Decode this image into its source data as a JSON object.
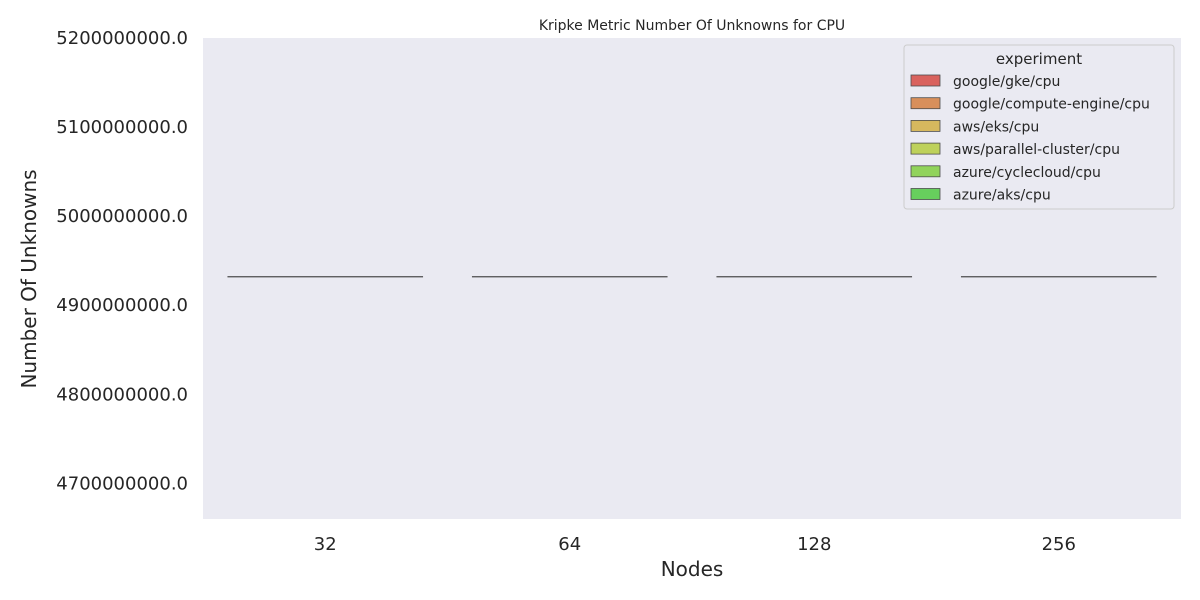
{
  "chart_data": {
    "type": "box",
    "title": "Kripke Metric Number Of Unknowns for CPU",
    "xlabel": "Nodes",
    "ylabel": "Number Of Unknowns",
    "categories": [
      "32",
      "64",
      "128",
      "256"
    ],
    "ylim": [
      4660000000,
      5200000000
    ],
    "yticks": [
      4700000000,
      4800000000,
      4900000000,
      5000000000,
      5100000000,
      5200000000
    ],
    "ytick_labels": [
      "4700000000.0",
      "4800000000.0",
      "4900000000.0",
      "5000000000.0",
      "5100000000.0",
      "5200000000.0"
    ],
    "grid": false,
    "background": "#eaeaf2",
    "legend": {
      "title": "experiment",
      "placement": "top-right",
      "entries": [
        {
          "label": "google/gke/cpu",
          "color": "#d9625e"
        },
        {
          "label": "google/compute-engine/cpu",
          "color": "#d88f5b"
        },
        {
          "label": "aws/eks/cpu",
          "color": "#d6b85e"
        },
        {
          "label": "aws/parallel-cluster/cpu",
          "color": "#bed15b"
        },
        {
          "label": "azure/cyclecloud/cpu",
          "color": "#91d35b"
        },
        {
          "label": "azure/aks/cpu",
          "color": "#67cf5d"
        }
      ]
    },
    "series": [
      {
        "category": "32",
        "value": 4932000000
      },
      {
        "category": "64",
        "value": 4932000000
      },
      {
        "category": "128",
        "value": 4932000000
      },
      {
        "category": "256",
        "value": 4932000000
      }
    ]
  }
}
